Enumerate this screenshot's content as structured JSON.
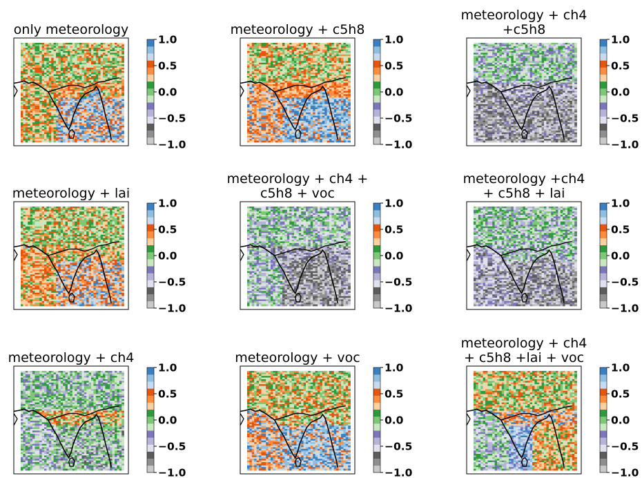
{
  "chart_data": [
    {
      "type": "heatmap",
      "title_lines": [
        "only meteorology"
      ],
      "pattern": "A"
    },
    {
      "type": "heatmap",
      "title_lines": [
        "meteorology + c5h8"
      ],
      "pattern": "B"
    },
    {
      "type": "heatmap",
      "title_lines": [
        "meteorology + ch4",
        "+c5h8"
      ],
      "pattern": "C"
    },
    {
      "type": "heatmap",
      "title_lines": [
        "meteorology + lai"
      ],
      "pattern": "D"
    },
    {
      "type": "heatmap",
      "title_lines": [
        "meteorology + ch4 +",
        "c5h8 + voc"
      ],
      "pattern": "E"
    },
    {
      "type": "heatmap",
      "title_lines": [
        "meteorology +ch4",
        "+ c5h8 + lai"
      ],
      "pattern": "F"
    },
    {
      "type": "heatmap",
      "title_lines": [
        "meteorology + ch4"
      ],
      "pattern": "G"
    },
    {
      "type": "heatmap",
      "title_lines": [
        "meteorology + voc"
      ],
      "pattern": "H"
    },
    {
      "type": "heatmap",
      "title_lines": [
        "meteorology + ch4",
        "+ c5h8 +lai + voc"
      ],
      "pattern": "I"
    }
  ],
  "colorbar": {
    "range": [
      -1.0,
      1.0
    ],
    "ticks": [
      1.0,
      0.5,
      0.0,
      -0.5,
      -1.0
    ],
    "tick_labels": [
      "1.0",
      "0.5",
      "0.0",
      "−0.5",
      "−1.0"
    ],
    "colormap": [
      "#c9c9c9",
      "#8f8f8f",
      "#5c5c5c",
      "#e1e0ee",
      "#b6b3d8",
      "#7b76b8",
      "#c9e8c0",
      "#7cc877",
      "#2f9a3c",
      "#fdd0a2",
      "#fd8d3c",
      "#e6550d",
      "#c6dbef",
      "#8fbfe0",
      "#3a7fc0"
    ]
  }
}
